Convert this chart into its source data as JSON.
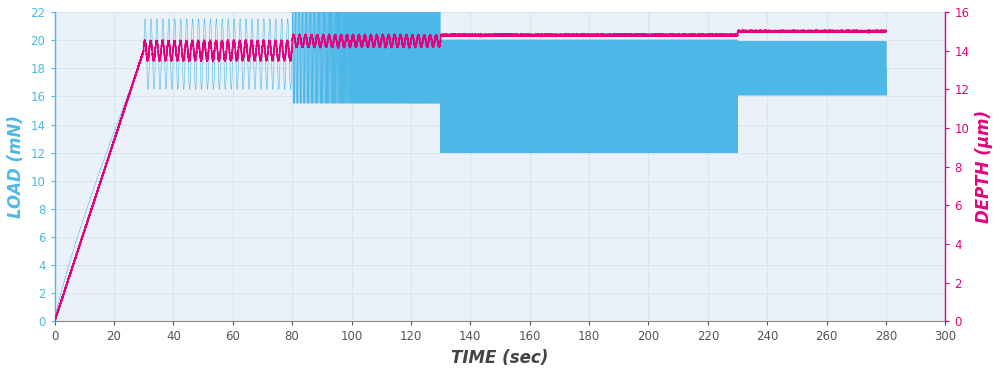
{
  "xlabel": "TIME (sec)",
  "ylabel_left": "LOAD (mN)",
  "ylabel_right": "DEPTH (μm)",
  "xlim": [
    0,
    300
  ],
  "ylim_left": [
    0,
    22
  ],
  "ylim_right": [
    0,
    16
  ],
  "yticks_left": [
    0,
    2,
    4,
    6,
    8,
    10,
    12,
    14,
    16,
    18,
    20,
    22
  ],
  "yticks_right": [
    0,
    2,
    4,
    6,
    8,
    10,
    12,
    14,
    16
  ],
  "xticks": [
    0,
    20,
    40,
    60,
    80,
    100,
    120,
    140,
    160,
    180,
    200,
    220,
    240,
    260,
    280,
    300
  ],
  "color_blue": "#4db8e8",
  "color_pink": "#e6007e",
  "background_color": "#eaf1f8",
  "grid_color": "#d8e4f0",
  "label_color_left": "#4db8e8",
  "label_color_right": "#e6007e",
  "phase1_end": 30,
  "phase2_end": 80,
  "phase3_end": 130,
  "phase4_end": 230,
  "phase5_end": 280,
  "load_ramp_peak": 19.0,
  "depth_ramp_peak": 14.0
}
